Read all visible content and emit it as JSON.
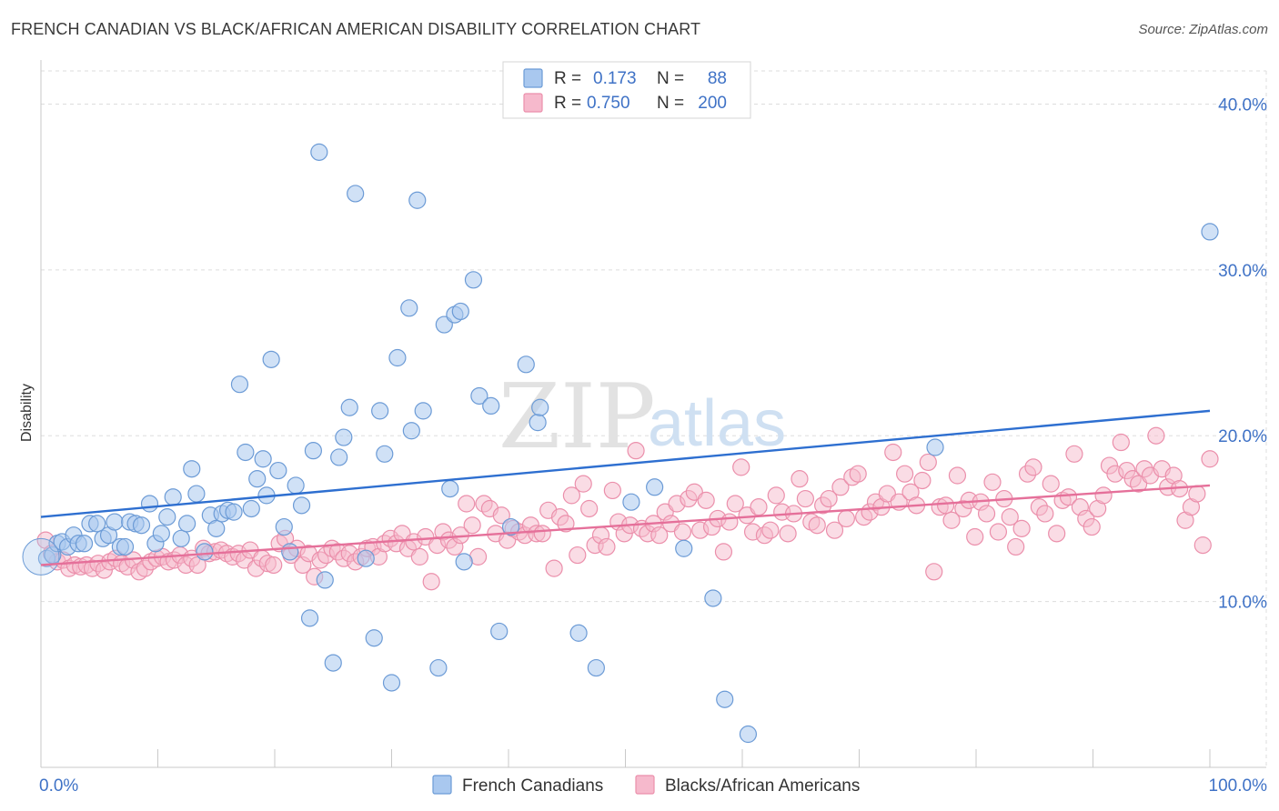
{
  "header": {
    "title": "FRENCH CANADIAN VS BLACK/AFRICAN AMERICAN DISABILITY CORRELATION CHART",
    "source": "Source: ZipAtlas.com"
  },
  "watermark": {
    "zip": "ZIP",
    "atlas": "atlas"
  },
  "colors": {
    "blue_fill": "#a9c8ef",
    "blue_stroke": "#6c9bd6",
    "blue_line": "#2e6fd0",
    "pink_fill": "#f6b9cc",
    "pink_stroke": "#eb8fab",
    "pink_line": "#e5709a",
    "tick_label": "#3f72c6",
    "grid": "#dddddd"
  },
  "chart_data": {
    "type": "scatter",
    "title": "FRENCH CANADIAN VS BLACK/AFRICAN AMERICAN DISABILITY CORRELATION CHART",
    "xlabel": "",
    "ylabel": "Disability",
    "xlim": [
      0,
      100
    ],
    "ylim": [
      0,
      42
    ],
    "x_tick_labels": [
      "0.0%",
      "100.0%"
    ],
    "y_ticks": [
      10,
      20,
      30,
      40
    ],
    "y_tick_labels": [
      "10.0%",
      "20.0%",
      "30.0%",
      "40.0%"
    ],
    "legend": {
      "position": "top-center",
      "entries": [
        {
          "r_label": "R =",
          "r_value": "0.173",
          "n_label": "N =",
          "n_value": "88"
        },
        {
          "r_label": "R =",
          "r_value": "0.750",
          "n_label": "N =",
          "n_value": "200"
        }
      ]
    },
    "bottom_legend": [
      "French Canadians",
      "Blacks/African Americans"
    ],
    "series": [
      {
        "name": "French Canadians",
        "trend": {
          "x": [
            0,
            100
          ],
          "y": [
            15.1,
            21.5
          ]
        },
        "points": [
          [
            0.5,
            12.6
          ],
          [
            1.0,
            12.8
          ],
          [
            1.4,
            13.5
          ],
          [
            1.8,
            13.6
          ],
          [
            2.3,
            13.3
          ],
          [
            2.8,
            14.0
          ],
          [
            3.2,
            13.5
          ],
          [
            3.7,
            13.5
          ],
          [
            4.2,
            14.7
          ],
          [
            4.8,
            14.7
          ],
          [
            5.3,
            13.8
          ],
          [
            5.8,
            14.0
          ],
          [
            6.3,
            14.8
          ],
          [
            6.8,
            13.3
          ],
          [
            7.2,
            13.3
          ],
          [
            7.6,
            14.8
          ],
          [
            8.1,
            14.7
          ],
          [
            8.6,
            14.6
          ],
          [
            9.3,
            15.9
          ],
          [
            9.8,
            13.5
          ],
          [
            10.3,
            14.1
          ],
          [
            10.8,
            15.1
          ],
          [
            11.3,
            16.3
          ],
          [
            12.0,
            13.8
          ],
          [
            12.5,
            14.7
          ],
          [
            12.9,
            18.0
          ],
          [
            13.3,
            16.5
          ],
          [
            14.0,
            13.0
          ],
          [
            14.5,
            15.2
          ],
          [
            15.0,
            14.4
          ],
          [
            15.5,
            15.3
          ],
          [
            16.0,
            15.5
          ],
          [
            16.5,
            15.4
          ],
          [
            17.0,
            23.1
          ],
          [
            17.5,
            19.0
          ],
          [
            18.0,
            15.6
          ],
          [
            18.5,
            17.4
          ],
          [
            19.0,
            18.6
          ],
          [
            19.3,
            16.4
          ],
          [
            19.7,
            24.6
          ],
          [
            20.3,
            17.9
          ],
          [
            20.8,
            14.5
          ],
          [
            21.3,
            13.0
          ],
          [
            21.8,
            17.0
          ],
          [
            22.3,
            15.8
          ],
          [
            23.0,
            9.0
          ],
          [
            23.3,
            19.1
          ],
          [
            23.8,
            37.1
          ],
          [
            24.3,
            11.3
          ],
          [
            25.0,
            6.3
          ],
          [
            25.5,
            18.7
          ],
          [
            25.9,
            19.9
          ],
          [
            26.4,
            21.7
          ],
          [
            26.9,
            34.6
          ],
          [
            27.8,
            12.6
          ],
          [
            28.5,
            7.8
          ],
          [
            29.0,
            21.5
          ],
          [
            29.4,
            18.9
          ],
          [
            30.0,
            5.1
          ],
          [
            30.5,
            24.7
          ],
          [
            31.5,
            27.7
          ],
          [
            31.7,
            20.3
          ],
          [
            32.2,
            34.2
          ],
          [
            32.7,
            21.5
          ],
          [
            34.0,
            6.0
          ],
          [
            34.5,
            26.7
          ],
          [
            35.0,
            16.8
          ],
          [
            35.4,
            27.3
          ],
          [
            35.9,
            27.5
          ],
          [
            36.2,
            12.4
          ],
          [
            37.0,
            29.4
          ],
          [
            37.5,
            22.4
          ],
          [
            38.5,
            21.8
          ],
          [
            39.2,
            8.2
          ],
          [
            40.2,
            14.5
          ],
          [
            41.5,
            24.3
          ],
          [
            42.5,
            20.8
          ],
          [
            42.7,
            21.7
          ],
          [
            46.0,
            8.1
          ],
          [
            47.5,
            6.0
          ],
          [
            50.5,
            16.0
          ],
          [
            52.5,
            16.9
          ],
          [
            55.0,
            13.2
          ],
          [
            57.5,
            10.2
          ],
          [
            58.5,
            4.1
          ],
          [
            60.5,
            2.0
          ],
          [
            76.5,
            19.3
          ],
          [
            100.0,
            32.3
          ]
        ]
      },
      {
        "name": "Blacks/African Americans",
        "trend": {
          "x": [
            0,
            100
          ],
          "y": [
            12.2,
            17.0
          ]
        },
        "points": [
          [
            0.4,
            13.7
          ],
          [
            0.9,
            12.9
          ],
          [
            1.4,
            12.4
          ],
          [
            1.9,
            12.5
          ],
          [
            2.4,
            12.0
          ],
          [
            2.9,
            12.2
          ],
          [
            3.4,
            12.1
          ],
          [
            3.9,
            12.2
          ],
          [
            4.4,
            12.0
          ],
          [
            4.9,
            12.3
          ],
          [
            5.4,
            11.9
          ],
          [
            5.9,
            12.4
          ],
          [
            6.4,
            12.6
          ],
          [
            6.9,
            12.3
          ],
          [
            7.4,
            12.1
          ],
          [
            7.9,
            12.5
          ],
          [
            8.4,
            11.8
          ],
          [
            8.9,
            12.0
          ],
          [
            9.4,
            12.4
          ],
          [
            9.9,
            12.6
          ],
          [
            10.4,
            12.7
          ],
          [
            10.9,
            12.4
          ],
          [
            11.4,
            12.5
          ],
          [
            11.9,
            12.8
          ],
          [
            12.4,
            12.2
          ],
          [
            12.9,
            12.6
          ],
          [
            13.4,
            12.2
          ],
          [
            13.9,
            13.2
          ],
          [
            14.4,
            12.9
          ],
          [
            14.9,
            13.0
          ],
          [
            15.4,
            13.1
          ],
          [
            15.9,
            12.9
          ],
          [
            16.4,
            12.7
          ],
          [
            16.9,
            12.9
          ],
          [
            17.4,
            12.5
          ],
          [
            17.9,
            13.1
          ],
          [
            18.4,
            12.0
          ],
          [
            18.9,
            12.6
          ],
          [
            19.4,
            12.3
          ],
          [
            19.9,
            12.2
          ],
          [
            20.4,
            13.5
          ],
          [
            20.9,
            13.8
          ],
          [
            21.4,
            12.8
          ],
          [
            21.9,
            13.2
          ],
          [
            22.4,
            12.2
          ],
          [
            22.9,
            12.9
          ],
          [
            23.4,
            11.5
          ],
          [
            23.9,
            12.5
          ],
          [
            24.4,
            12.8
          ],
          [
            24.9,
            13.2
          ],
          [
            25.4,
            13.0
          ],
          [
            25.9,
            12.6
          ],
          [
            26.4,
            12.9
          ],
          [
            26.9,
            12.4
          ],
          [
            27.4,
            12.7
          ],
          [
            27.9,
            13.2
          ],
          [
            28.4,
            13.3
          ],
          [
            28.9,
            12.7
          ],
          [
            29.4,
            13.5
          ],
          [
            29.9,
            13.8
          ],
          [
            30.4,
            13.5
          ],
          [
            30.9,
            14.1
          ],
          [
            31.4,
            13.2
          ],
          [
            31.9,
            13.6
          ],
          [
            32.4,
            12.7
          ],
          [
            32.9,
            13.9
          ],
          [
            33.4,
            11.2
          ],
          [
            33.9,
            13.4
          ],
          [
            34.4,
            14.2
          ],
          [
            34.9,
            13.7
          ],
          [
            35.4,
            13.3
          ],
          [
            35.9,
            14.0
          ],
          [
            36.4,
            15.9
          ],
          [
            36.9,
            14.6
          ],
          [
            37.4,
            12.7
          ],
          [
            37.9,
            15.9
          ],
          [
            38.4,
            15.6
          ],
          [
            38.9,
            14.1
          ],
          [
            39.4,
            15.2
          ],
          [
            39.9,
            13.7
          ],
          [
            40.4,
            14.4
          ],
          [
            40.9,
            14.2
          ],
          [
            41.4,
            14.0
          ],
          [
            41.9,
            14.6
          ],
          [
            42.4,
            14.1
          ],
          [
            42.9,
            14.1
          ],
          [
            43.4,
            15.5
          ],
          [
            43.9,
            12.0
          ],
          [
            44.4,
            15.1
          ],
          [
            44.9,
            14.7
          ],
          [
            45.4,
            16.4
          ],
          [
            45.9,
            12.8
          ],
          [
            46.4,
            17.1
          ],
          [
            46.9,
            15.6
          ],
          [
            47.4,
            13.4
          ],
          [
            47.9,
            14.0
          ],
          [
            48.4,
            13.3
          ],
          [
            48.9,
            16.7
          ],
          [
            49.4,
            14.8
          ],
          [
            49.9,
            14.1
          ],
          [
            50.4,
            14.6
          ],
          [
            50.9,
            19.1
          ],
          [
            51.4,
            14.4
          ],
          [
            51.9,
            14.1
          ],
          [
            52.4,
            14.7
          ],
          [
            52.9,
            14.0
          ],
          [
            53.4,
            15.4
          ],
          [
            53.9,
            14.7
          ],
          [
            54.4,
            15.9
          ],
          [
            54.9,
            14.2
          ],
          [
            55.4,
            16.2
          ],
          [
            55.9,
            16.6
          ],
          [
            56.4,
            14.3
          ],
          [
            56.9,
            16.1
          ],
          [
            57.4,
            14.5
          ],
          [
            57.9,
            15.0
          ],
          [
            58.4,
            13.0
          ],
          [
            58.9,
            14.8
          ],
          [
            59.4,
            15.9
          ],
          [
            59.9,
            18.1
          ],
          [
            60.4,
            15.2
          ],
          [
            60.9,
            14.2
          ],
          [
            61.4,
            15.7
          ],
          [
            61.9,
            14.0
          ],
          [
            62.4,
            14.3
          ],
          [
            62.9,
            16.4
          ],
          [
            63.4,
            15.4
          ],
          [
            63.9,
            14.1
          ],
          [
            64.4,
            15.3
          ],
          [
            64.9,
            17.4
          ],
          [
            65.4,
            16.2
          ],
          [
            65.9,
            14.8
          ],
          [
            66.4,
            14.6
          ],
          [
            66.9,
            15.8
          ],
          [
            67.4,
            16.2
          ],
          [
            67.9,
            14.3
          ],
          [
            68.4,
            16.9
          ],
          [
            68.9,
            15.0
          ],
          [
            69.4,
            17.5
          ],
          [
            69.9,
            17.7
          ],
          [
            70.4,
            15.1
          ],
          [
            70.9,
            15.4
          ],
          [
            71.4,
            16.0
          ],
          [
            71.9,
            15.7
          ],
          [
            72.4,
            16.5
          ],
          [
            72.9,
            19.0
          ],
          [
            73.4,
            16.0
          ],
          [
            73.9,
            17.7
          ],
          [
            74.4,
            16.6
          ],
          [
            74.9,
            15.8
          ],
          [
            75.4,
            17.3
          ],
          [
            75.9,
            18.4
          ],
          [
            76.4,
            11.8
          ],
          [
            76.9,
            15.7
          ],
          [
            77.4,
            15.8
          ],
          [
            77.9,
            14.9
          ],
          [
            78.4,
            17.6
          ],
          [
            78.9,
            15.6
          ],
          [
            79.4,
            16.1
          ],
          [
            79.9,
            13.9
          ],
          [
            80.4,
            16.0
          ],
          [
            80.9,
            15.3
          ],
          [
            81.4,
            17.2
          ],
          [
            81.9,
            14.2
          ],
          [
            82.4,
            16.2
          ],
          [
            82.9,
            15.1
          ],
          [
            83.4,
            13.3
          ],
          [
            83.9,
            14.4
          ],
          [
            84.4,
            17.7
          ],
          [
            84.9,
            18.1
          ],
          [
            85.4,
            15.7
          ],
          [
            85.9,
            15.3
          ],
          [
            86.4,
            17.1
          ],
          [
            86.9,
            14.1
          ],
          [
            87.4,
            16.1
          ],
          [
            87.9,
            16.3
          ],
          [
            88.4,
            18.9
          ],
          [
            88.9,
            15.7
          ],
          [
            89.4,
            15.0
          ],
          [
            89.9,
            14.5
          ],
          [
            90.4,
            15.6
          ],
          [
            90.9,
            16.4
          ],
          [
            91.4,
            18.2
          ],
          [
            91.9,
            17.7
          ],
          [
            92.4,
            19.6
          ],
          [
            92.9,
            17.9
          ],
          [
            93.4,
            17.4
          ],
          [
            93.9,
            17.1
          ],
          [
            94.4,
            18.0
          ],
          [
            94.9,
            17.6
          ],
          [
            95.4,
            20.0
          ],
          [
            95.9,
            18.0
          ],
          [
            96.4,
            16.9
          ],
          [
            96.9,
            17.6
          ],
          [
            97.4,
            16.8
          ],
          [
            97.9,
            14.9
          ],
          [
            98.4,
            15.7
          ],
          [
            98.9,
            16.5
          ],
          [
            99.4,
            13.4
          ],
          [
            100.0,
            18.6
          ]
        ]
      }
    ]
  }
}
